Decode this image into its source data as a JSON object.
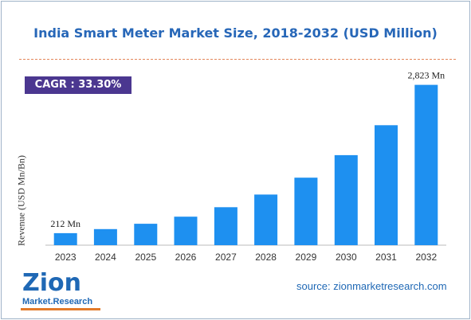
{
  "title": "India Smart Meter Market Size, 2018-2032 (USD Million)",
  "cagr_label": "CAGR : 33.30%",
  "logo": {
    "name": "Zion",
    "sub": "Market.Research"
  },
  "source": "source: zionmarketresearch.com",
  "colors": {
    "bar": "#1e90f0",
    "title": "#2767b8",
    "badge": "#4b3790",
    "divider": "#e3875a"
  },
  "chart_data": {
    "type": "bar",
    "title": "India Smart Meter Market Size, 2018-2032 (USD Million)",
    "ylabel": "Revenue (USD Mn/Bn)",
    "xlabel": "",
    "categories": [
      "2023",
      "2024",
      "2025",
      "2026",
      "2027",
      "2028",
      "2029",
      "2030",
      "2031",
      "2032"
    ],
    "values": [
      212,
      283,
      377,
      502,
      669,
      892,
      1189,
      1585,
      2112,
      2823
    ],
    "data_labels": [
      {
        "index": 0,
        "text": "212 Mn"
      },
      {
        "index": 9,
        "text": "2,823 Mn"
      }
    ],
    "ylim": [
      0,
      3000
    ],
    "grid": false,
    "legend": "none"
  }
}
